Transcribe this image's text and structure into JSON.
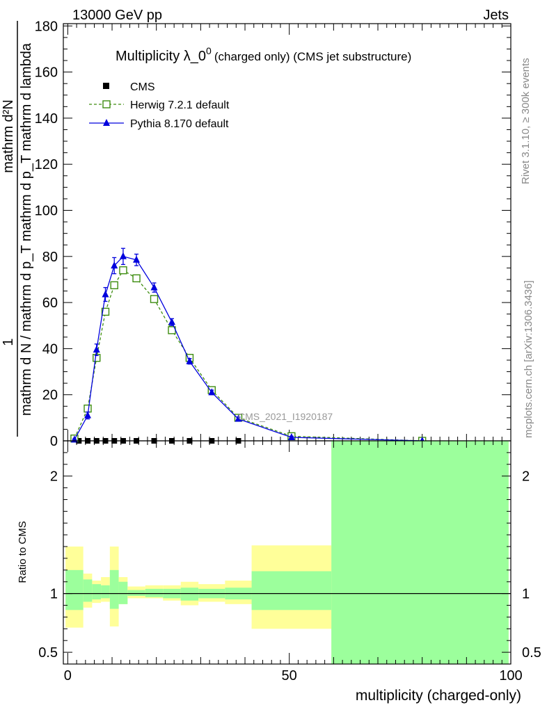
{
  "header": {
    "left": "13000 GeV pp",
    "right": "Jets"
  },
  "side_labels": {
    "rivet": "Rivet 3.1.10, ≥ 300k events",
    "mcplots": "mcplots.cern.ch [arXiv:1306.3436]"
  },
  "watermark": "CMS_2021_I1920187",
  "chart_data": {
    "type": "line",
    "title": "Multiplicity λ_0",
    "title_superscript": "0",
    "title_suffix": "(charged only) (CMS jet substructure)",
    "xlabel": "multiplicity (charged-only)",
    "ylabel_numerator": "1",
    "ylabel_denominator": "mathrm d N / mathrm d p_T mathrm d p_T mathrm d lambda",
    "ylabel_top": "mathrm d²N",
    "xlim": [
      -1,
      100
    ],
    "ylim": [
      0,
      181
    ],
    "x_ticks": [
      0,
      50,
      100
    ],
    "y_ticks": [
      0,
      20,
      40,
      60,
      80,
      100,
      120,
      140,
      160,
      180
    ],
    "legend": {
      "placement": "top-left",
      "entries": [
        "CMS",
        "Herwig 7.2.1 default",
        "Pythia 8.170 default"
      ]
    },
    "series": [
      {
        "name": "CMS",
        "color": "#000000",
        "marker": "square",
        "x": [
          2.5,
          4.5,
          6.5,
          8.5,
          10.5,
          12.5,
          15.5,
          19.5,
          23.5,
          27.5,
          32.5,
          38.5,
          80
        ],
        "values": [
          0,
          0,
          0,
          0,
          0,
          0,
          0,
          0,
          0,
          0,
          0,
          0,
          0
        ]
      },
      {
        "name": "Herwig 7.2.1 default",
        "color": "#3d8c0f",
        "marker": "open-square",
        "line": "dashed",
        "x": [
          1.5,
          4.5,
          6.5,
          8.5,
          10.5,
          12.5,
          15.5,
          19.5,
          23.5,
          27.5,
          32.5,
          38.5,
          50.5,
          80
        ],
        "values": [
          1,
          14,
          36,
          56,
          67.5,
          74,
          70.5,
          61.5,
          48,
          36,
          22,
          10,
          2,
          0
        ]
      },
      {
        "name": "Pythia 8.170 default",
        "color": "#0000dd",
        "marker": "filled-triangle",
        "line": "solid",
        "x": [
          1.5,
          4.5,
          6.5,
          8.5,
          10.5,
          12.5,
          15.5,
          19.5,
          23.5,
          27.5,
          32.5,
          38.5,
          50.5,
          80
        ],
        "values": [
          0.5,
          11,
          39.5,
          63.5,
          76,
          80,
          78.5,
          66.5,
          51.5,
          34.5,
          21,
          9.5,
          1.5,
          0
        ],
        "errors": [
          0.3,
          1.5,
          2.5,
          3,
          3.5,
          3.5,
          2.5,
          2,
          1.5,
          1.2,
          1,
          0.8,
          0.5,
          0
        ]
      }
    ],
    "ratio_panel": {
      "ylabel": "Ratio to CMS",
      "ylim": [
        0.4,
        2.3
      ],
      "y_ticks": [
        0.5,
        1,
        2
      ],
      "bins": [
        {
          "lo": -0.5,
          "hi": 3.5,
          "stat": [
            0.86,
            1.2
          ],
          "total": [
            0.71,
            1.4
          ]
        },
        {
          "lo": 3.5,
          "hi": 5.5,
          "stat": [
            0.93,
            1.12
          ],
          "total": [
            0.88,
            1.17
          ]
        },
        {
          "lo": 5.5,
          "hi": 7.5,
          "stat": [
            0.95,
            1.08
          ],
          "total": [
            0.92,
            1.11
          ]
        },
        {
          "lo": 7.5,
          "hi": 9.5,
          "stat": [
            0.96,
            1.07
          ],
          "total": [
            0.93,
            1.14
          ]
        },
        {
          "lo": 9.5,
          "hi": 11.5,
          "stat": [
            0.87,
            1.2
          ],
          "total": [
            0.72,
            1.4
          ]
        },
        {
          "lo": 11.5,
          "hi": 13.5,
          "stat": [
            0.91,
            1.1
          ],
          "total": [
            0.91,
            1.14
          ]
        },
        {
          "lo": 13.5,
          "hi": 17.5,
          "stat": [
            0.98,
            1.03
          ],
          "total": [
            0.96,
            1.06
          ]
        },
        {
          "lo": 17.5,
          "hi": 21.5,
          "stat": [
            0.97,
            1.04
          ],
          "total": [
            0.96,
            1.07
          ]
        },
        {
          "lo": 21.5,
          "hi": 25.5,
          "stat": [
            0.96,
            1.04
          ],
          "total": [
            0.94,
            1.07
          ]
        },
        {
          "lo": 25.5,
          "hi": 29.5,
          "stat": [
            0.94,
            1.05
          ],
          "total": [
            0.9,
            1.1
          ]
        },
        {
          "lo": 29.5,
          "hi": 35.5,
          "stat": [
            0.96,
            1.04
          ],
          "total": [
            0.93,
            1.08
          ]
        },
        {
          "lo": 35.5,
          "hi": 41.5,
          "stat": [
            0.95,
            1.05
          ],
          "total": [
            0.91,
            1.11
          ]
        },
        {
          "lo": 41.5,
          "hi": 59.5,
          "stat": [
            0.86,
            1.19
          ],
          "total": [
            0.7,
            1.41
          ]
        },
        {
          "lo": 59.5,
          "hi": 99.5,
          "stat": [
            0.4,
            2.3
          ],
          "total": [
            0.4,
            2.3
          ]
        }
      ],
      "stat_color": "#9cff9c",
      "total_color": "#ffff99"
    }
  }
}
